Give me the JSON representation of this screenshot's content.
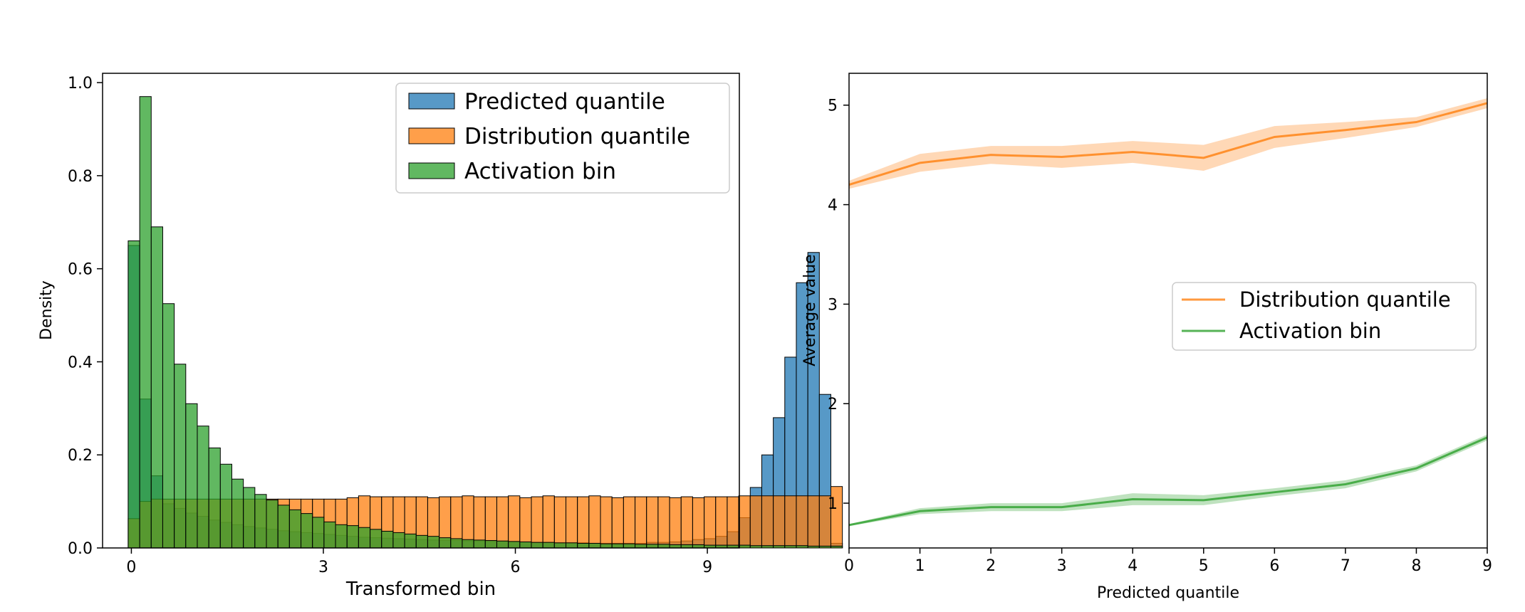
{
  "chart_data": [
    {
      "type": "bar",
      "subtype": "histogram",
      "xlabel": "Transformed bin",
      "ylabel": "Density",
      "xlim": [
        -0.45,
        9.5
      ],
      "ylim": [
        0,
        1.02
      ],
      "xticks": [
        "0",
        "3",
        "6",
        "9"
      ],
      "yticks": [
        "0.0",
        "0.2",
        "0.4",
        "0.6",
        "0.8",
        "1.0"
      ],
      "bin_start": -0.05,
      "bin_width": 0.18,
      "legend_position": "top-right",
      "series": [
        {
          "name": "Predicted quantile",
          "color": "#1f77b4",
          "values": [
            0.65,
            0.32,
            0.155,
            0.095,
            0.085,
            0.075,
            0.068,
            0.06,
            0.055,
            0.05,
            0.046,
            0.043,
            0.04,
            0.037,
            0.035,
            0.033,
            0.031,
            0.029,
            0.027,
            0.025,
            0.023,
            0.022,
            0.021,
            0.02,
            0.019,
            0.018,
            0.017,
            0.016,
            0.016,
            0.015,
            0.015,
            0.014,
            0.014,
            0.013,
            0.013,
            0.012,
            0.012,
            0.011,
            0.011,
            0.011,
            0.01,
            0.01,
            0.01,
            0.01,
            0.01,
            0.012,
            0.012,
            0.013,
            0.015,
            0.018,
            0.02,
            0.025,
            0.035,
            0.065,
            0.13,
            0.2,
            0.28,
            0.41,
            0.57,
            0.635,
            0.33,
            0.01
          ]
        },
        {
          "name": "Distribution quantile",
          "color": "#ff7f0e",
          "values": [
            0.063,
            0.1,
            0.105,
            0.105,
            0.105,
            0.105,
            0.105,
            0.105,
            0.105,
            0.105,
            0.105,
            0.105,
            0.105,
            0.105,
            0.105,
            0.105,
            0.105,
            0.105,
            0.105,
            0.108,
            0.112,
            0.11,
            0.11,
            0.11,
            0.11,
            0.11,
            0.108,
            0.11,
            0.11,
            0.112,
            0.11,
            0.11,
            0.11,
            0.112,
            0.108,
            0.11,
            0.112,
            0.11,
            0.11,
            0.11,
            0.112,
            0.11,
            0.108,
            0.11,
            0.11,
            0.11,
            0.11,
            0.108,
            0.11,
            0.108,
            0.11,
            0.11,
            0.11,
            0.112,
            0.112,
            0.112,
            0.112,
            0.112,
            0.112,
            0.112,
            0.112,
            0.132
          ]
        },
        {
          "name": "Activation bin",
          "color": "#2ca02c",
          "values": [
            0.66,
            0.97,
            0.69,
            0.525,
            0.395,
            0.31,
            0.262,
            0.215,
            0.18,
            0.148,
            0.13,
            0.115,
            0.103,
            0.092,
            0.082,
            0.074,
            0.066,
            0.056,
            0.05,
            0.048,
            0.044,
            0.04,
            0.036,
            0.033,
            0.03,
            0.027,
            0.025,
            0.022,
            0.02,
            0.018,
            0.017,
            0.016,
            0.015,
            0.014,
            0.013,
            0.012,
            0.012,
            0.011,
            0.011,
            0.01,
            0.01,
            0.009,
            0.009,
            0.009,
            0.008,
            0.008,
            0.008,
            0.007,
            0.007,
            0.007,
            0.006,
            0.006,
            0.006,
            0.006,
            0.005,
            0.005,
            0.005,
            0.005,
            0.005,
            0.004,
            0.004,
            0.004
          ]
        }
      ]
    },
    {
      "type": "line",
      "xlabel": "Predicted quantile",
      "ylabel": "Average value",
      "xlim": [
        0,
        9
      ],
      "ylim": [
        0.55,
        5.32
      ],
      "x": [
        0,
        1,
        2,
        3,
        4,
        5,
        6,
        7,
        8,
        9
      ],
      "xticks": [
        "0",
        "1",
        "2",
        "3",
        "4",
        "5",
        "6",
        "7",
        "8",
        "9"
      ],
      "yticks": [
        "1",
        "2",
        "3",
        "4",
        "5"
      ],
      "legend_position": "center-right",
      "series": [
        {
          "name": "Distribution quantile",
          "color": "#ff7f0e",
          "values": [
            4.2,
            4.42,
            4.5,
            4.48,
            4.53,
            4.47,
            4.68,
            4.75,
            4.83,
            5.02
          ],
          "band": [
            0.04,
            0.09,
            0.09,
            0.11,
            0.11,
            0.13,
            0.11,
            0.08,
            0.05,
            0.05
          ]
        },
        {
          "name": "Activation bin",
          "color": "#2ca02c",
          "values": [
            0.78,
            0.92,
            0.96,
            0.96,
            1.04,
            1.03,
            1.11,
            1.19,
            1.35,
            1.66
          ],
          "band": [
            0.01,
            0.03,
            0.04,
            0.04,
            0.06,
            0.05,
            0.04,
            0.04,
            0.03,
            0.03
          ]
        }
      ]
    }
  ]
}
